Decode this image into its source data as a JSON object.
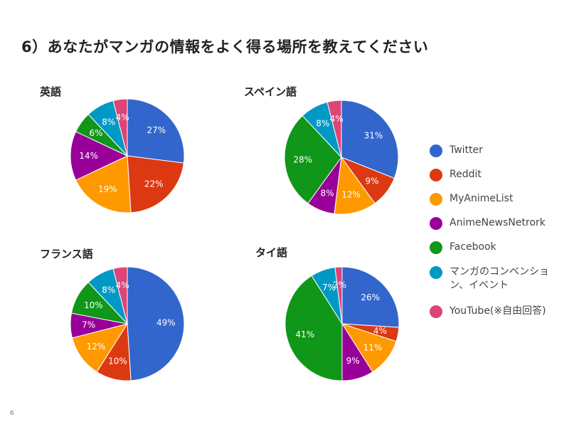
{
  "title": "6）あなたがマンガの情報をよく得る場所を教えてください",
  "page_number": "6",
  "chart_data": [
    {
      "type": "pie",
      "title": "英語",
      "categories": [
        "Twitter",
        "Reddit",
        "MyAnimeList",
        "AnimeNewsNetrork",
        "Facebook",
        "マンガのコンベンション、イベント",
        "YouTube(※自由回答)"
      ],
      "values": [
        27,
        22,
        19,
        14,
        6,
        8,
        4
      ],
      "labels": [
        "27%",
        "22%",
        "19%",
        "14%",
        "6%",
        "8%",
        "4%"
      ],
      "colors": [
        "#3366cc",
        "#dc3912",
        "#ff9900",
        "#990099",
        "#109618",
        "#0099c6",
        "#dd4477"
      ]
    },
    {
      "type": "pie",
      "title": "スペイン語",
      "categories": [
        "Twitter",
        "Reddit",
        "MyAnimeList",
        "AnimeNewsNetrork",
        "Facebook",
        "マンガのコンベンション、イベント",
        "YouTube(※自由回答)"
      ],
      "values": [
        31,
        9,
        12,
        8,
        28,
        8,
        4
      ],
      "labels": [
        "31%",
        "9%",
        "12%",
        "8%",
        "28%",
        "8%",
        "4%"
      ],
      "colors": [
        "#3366cc",
        "#dc3912",
        "#ff9900",
        "#990099",
        "#109618",
        "#0099c6",
        "#dd4477"
      ]
    },
    {
      "type": "pie",
      "title": "フランス語",
      "categories": [
        "Twitter",
        "Reddit",
        "MyAnimeList",
        "AnimeNewsNetrork",
        "Facebook",
        "マンガのコンベンション、イベント",
        "YouTube(※自由回答)"
      ],
      "values": [
        49,
        10,
        12,
        7,
        10,
        8,
        4
      ],
      "labels": [
        "49%",
        "10%",
        "12%",
        "7%",
        "10%",
        "8%",
        "4%"
      ],
      "colors": [
        "#3366cc",
        "#dc3912",
        "#ff9900",
        "#990099",
        "#109618",
        "#0099c6",
        "#dd4477"
      ]
    },
    {
      "type": "pie",
      "title": "タイ語",
      "categories": [
        "Twitter",
        "Reddit",
        "MyAnimeList",
        "AnimeNewsNetrork",
        "Facebook",
        "マンガのコンベンション、イベント",
        "YouTube(※自由回答)"
      ],
      "values": [
        26,
        4,
        11,
        9,
        41,
        7,
        2
      ],
      "labels": [
        "26%",
        "4%",
        "11%",
        "9%",
        "41%",
        "7%",
        "2%"
      ],
      "colors": [
        "#3366cc",
        "#dc3912",
        "#ff9900",
        "#990099",
        "#109618",
        "#0099c6",
        "#dd4477"
      ]
    }
  ],
  "legend": {
    "placement": "right",
    "items": [
      {
        "label": "Twitter",
        "color": "#3366cc"
      },
      {
        "label": "Reddit",
        "color": "#dc3912"
      },
      {
        "label": "MyAnimeList",
        "color": "#ff9900"
      },
      {
        "label": "AnimeNewsNetrork",
        "color": "#990099"
      },
      {
        "label": "Facebook",
        "color": "#109618"
      },
      {
        "label": "マンガのコンベンション、イベント",
        "color": "#0099c6"
      },
      {
        "label": "YouTube(※自由回答)",
        "color": "#dd4477"
      }
    ]
  }
}
